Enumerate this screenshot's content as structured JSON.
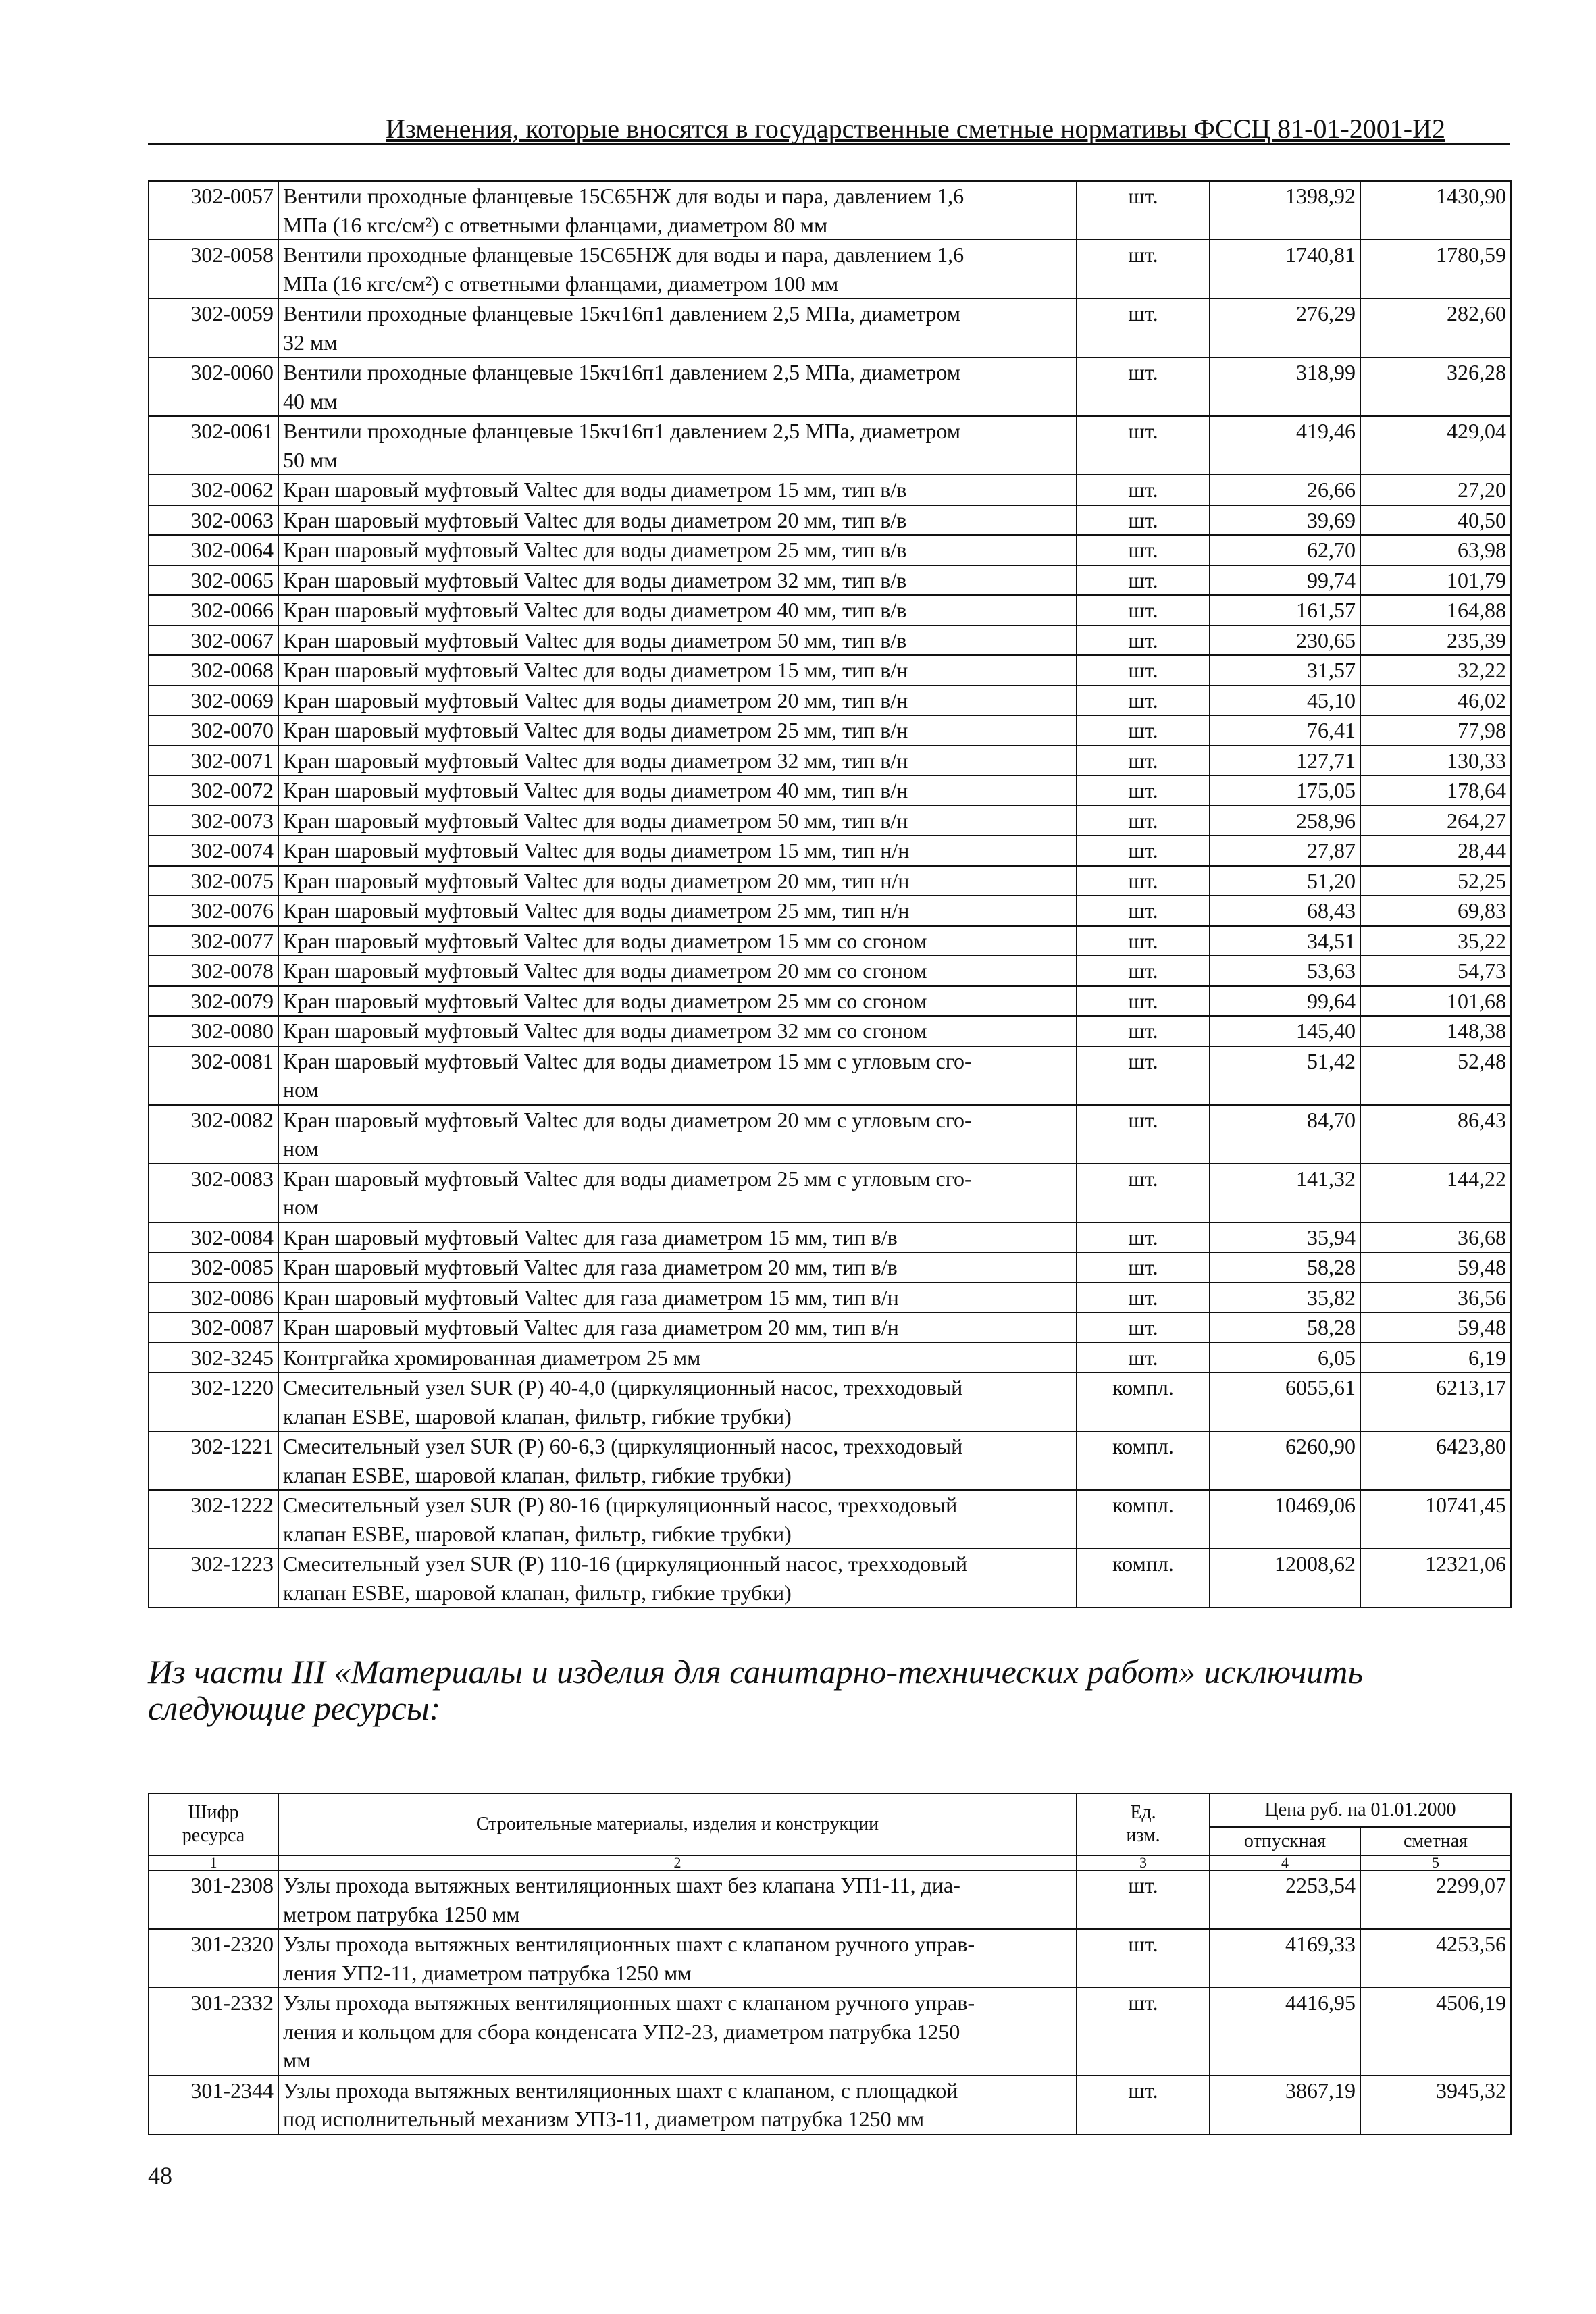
{
  "header": {
    "title": "Изменения, которые вносятся в государственные сметные нормативы ФССЦ 81-01-2001-И2"
  },
  "table1": {
    "rows": [
      [
        "302-0057",
        "Вентили проходные фланцевые 15С65НЖ для воды и пара, давлением 1,6\nМПа (16 кгс/см²) с ответными фланцами, диаметром 80 мм",
        "шт.",
        "1398,92",
        "1430,90"
      ],
      [
        "302-0058",
        "Вентили проходные фланцевые 15С65НЖ для воды и пара, давлением 1,6\nМПа (16 кгс/см²) с ответными фланцами, диаметром 100 мм",
        "шт.",
        "1740,81",
        "1780,59"
      ],
      [
        "302-0059",
        "Вентили проходные фланцевые 15кч16п1 давлением 2,5 МПа, диаметром\n32 мм",
        "шт.",
        "276,29",
        "282,60"
      ],
      [
        "302-0060",
        "Вентили проходные фланцевые 15кч16п1 давлением 2,5 МПа, диаметром\n40 мм",
        "шт.",
        "318,99",
        "326,28"
      ],
      [
        "302-0061",
        "Вентили проходные фланцевые 15кч16п1 давлением 2,5 МПа, диаметром\n50 мм",
        "шт.",
        "419,46",
        "429,04"
      ],
      [
        "302-0062",
        "Кран шаровый муфтовый Valtec для воды диаметром 15 мм, тип в/в",
        "шт.",
        "26,66",
        "27,20"
      ],
      [
        "302-0063",
        "Кран шаровый муфтовый Valtec для воды диаметром 20 мм, тип в/в",
        "шт.",
        "39,69",
        "40,50"
      ],
      [
        "302-0064",
        "Кран шаровый муфтовый Valtec для воды диаметром 25 мм, тип в/в",
        "шт.",
        "62,70",
        "63,98"
      ],
      [
        "302-0065",
        "Кран шаровый муфтовый Valtec для воды диаметром 32 мм, тип в/в",
        "шт.",
        "99,74",
        "101,79"
      ],
      [
        "302-0066",
        "Кран шаровый муфтовый Valtec для воды диаметром 40 мм, тип в/в",
        "шт.",
        "161,57",
        "164,88"
      ],
      [
        "302-0067",
        "Кран шаровый муфтовый Valtec для воды диаметром 50 мм, тип в/в",
        "шт.",
        "230,65",
        "235,39"
      ],
      [
        "302-0068",
        "Кран шаровый муфтовый Valtec для воды диаметром 15 мм, тип в/н",
        "шт.",
        "31,57",
        "32,22"
      ],
      [
        "302-0069",
        "Кран шаровый муфтовый Valtec для воды диаметром 20 мм, тип в/н",
        "шт.",
        "45,10",
        "46,02"
      ],
      [
        "302-0070",
        "Кран шаровый муфтовый Valtec для воды диаметром 25 мм, тип в/н",
        "шт.",
        "76,41",
        "77,98"
      ],
      [
        "302-0071",
        "Кран шаровый муфтовый Valtec для воды диаметром 32 мм, тип в/н",
        "шт.",
        "127,71",
        "130,33"
      ],
      [
        "302-0072",
        "Кран шаровый муфтовый Valtec для воды диаметром 40 мм, тип в/н",
        "шт.",
        "175,05",
        "178,64"
      ],
      [
        "302-0073",
        "Кран шаровый муфтовый Valtec для воды диаметром 50 мм, тип в/н",
        "шт.",
        "258,96",
        "264,27"
      ],
      [
        "302-0074",
        "Кран шаровый муфтовый Valtec для воды диаметром 15 мм, тип н/н",
        "шт.",
        "27,87",
        "28,44"
      ],
      [
        "302-0075",
        "Кран шаровый муфтовый Valtec для воды диаметром 20 мм, тип н/н",
        "шт.",
        "51,20",
        "52,25"
      ],
      [
        "302-0076",
        "Кран шаровый муфтовый Valtec для воды диаметром 25 мм, тип н/н",
        "шт.",
        "68,43",
        "69,83"
      ],
      [
        "302-0077",
        "Кран шаровый муфтовый Valtec для воды диаметром 15 мм со сгоном",
        "шт.",
        "34,51",
        "35,22"
      ],
      [
        "302-0078",
        "Кран шаровый муфтовый Valtec для воды диаметром 20 мм со сгоном",
        "шт.",
        "53,63",
        "54,73"
      ],
      [
        "302-0079",
        "Кран шаровый муфтовый Valtec для воды диаметром 25 мм со сгоном",
        "шт.",
        "99,64",
        "101,68"
      ],
      [
        "302-0080",
        "Кран шаровый муфтовый Valtec для воды диаметром 32 мм со сгоном",
        "шт.",
        "145,40",
        "148,38"
      ],
      [
        "302-0081",
        "Кран шаровый муфтовый Valtec для воды диаметром 15 мм с угловым сго-\nном",
        "шт.",
        "51,42",
        "52,48"
      ],
      [
        "302-0082",
        "Кран шаровый муфтовый Valtec для воды диаметром 20 мм с угловым сго-\nном",
        "шт.",
        "84,70",
        "86,43"
      ],
      [
        "302-0083",
        "Кран шаровый муфтовый Valtec для воды диаметром 25 мм с угловым сго-\nном",
        "шт.",
        "141,32",
        "144,22"
      ],
      [
        "302-0084",
        "Кран шаровый муфтовый Valtec для газа диаметром 15 мм, тип в/в",
        "шт.",
        "35,94",
        "36,68"
      ],
      [
        "302-0085",
        "Кран шаровый муфтовый Valtec для газа диаметром 20 мм, тип в/в",
        "шт.",
        "58,28",
        "59,48"
      ],
      [
        "302-0086",
        "Кран шаровый муфтовый Valtec для газа диаметром 15 мм, тип в/н",
        "шт.",
        "35,82",
        "36,56"
      ],
      [
        "302-0087",
        "Кран шаровый муфтовый Valtec для газа диаметром 20 мм, тип в/н",
        "шт.",
        "58,28",
        "59,48"
      ],
      [
        "302-3245",
        "Контргайка хромированная диаметром 25 мм",
        "шт.",
        "6,05",
        "6,19"
      ],
      [
        "302-1220",
        "Смесительный узел SUR (P) 40-4,0 (циркуляционный насос, трехходовый\nклапан ESBE, шаровой клапан, фильтр, гибкие трубки)",
        "компл.",
        "6055,61",
        "6213,17"
      ],
      [
        "302-1221",
        "Смесительный узел SUR (P) 60-6,3 (циркуляционный насос, трехходовый\nклапан ESBE, шаровой клапан, фильтр, гибкие трубки)",
        "компл.",
        "6260,90",
        "6423,80"
      ],
      [
        "302-1222",
        "Смесительный узел SUR (P) 80-16 (циркуляционный насос, трехходовый\nклапан ESBE, шаровой клапан, фильтр, гибкие трубки)",
        "компл.",
        "10469,06",
        "10741,45"
      ],
      [
        "302-1223",
        "Смесительный узел SUR (P) 110-16 (циркуляционный насос, трехходовый\nклапан ESBE, шаровой клапан, фильтр, гибкие трубки)",
        "компл.",
        "12008,62",
        "12321,06"
      ]
    ]
  },
  "intro": "Из части III «Материалы и изделия для санитарно-технических работ» исключить следующие ресурсы:",
  "table2": {
    "headers": {
      "code": "Шифр\nресурса",
      "name": "Строительные материалы, изделия и конструкции",
      "unit": "Ед.\nизм.",
      "price": "Цена руб. на 01.01.2000",
      "release": "отпускная",
      "estimate": "сметная"
    },
    "index": [
      "1",
      "2",
      "3",
      "4",
      "5"
    ],
    "rows": [
      [
        "301-2308",
        "Узлы прохода вытяжных вентиляционных шахт без клапана УП1-11, диа-\nметром патрубка 1250 мм",
        "шт.",
        "2253,54",
        "2299,07"
      ],
      [
        "301-2320",
        "Узлы прохода вытяжных вентиляционных шахт с клапаном ручного управ-\nления УП2-11, диаметром патрубка 1250 мм",
        "шт.",
        "4169,33",
        "4253,56"
      ],
      [
        "301-2332",
        "Узлы прохода вытяжных вентиляционных шахт с клапаном ручного управ-\nления и кольцом для сбора конденсата УП2-23, диаметром патрубка 1250\nмм",
        "шт.",
        "4416,95",
        "4506,19"
      ],
      [
        "301-2344",
        "Узлы прохода вытяжных вентиляционных шахт с клапаном, с площадкой\nпод исполнительный механизм УП3-11, диаметром патрубка 1250 мм",
        "шт.",
        "3867,19",
        "3945,32"
      ]
    ]
  },
  "page_number": "48"
}
